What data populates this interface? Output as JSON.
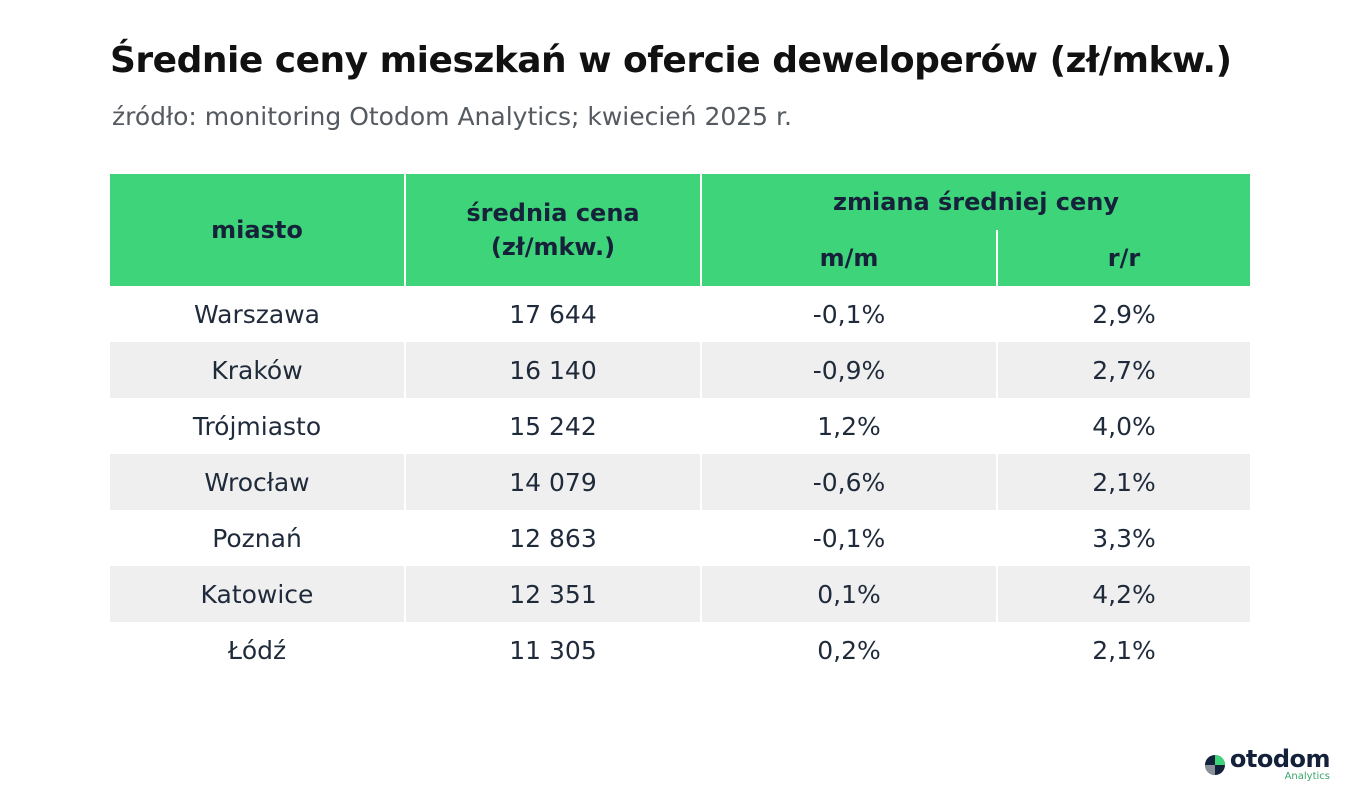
{
  "title": "Średnie ceny mieszkań w ofercie deweloperów (zł/mkw.)",
  "subtitle": "źródło: monitoring Otodom Analytics; kwiecień 2025 r.",
  "logo": {
    "name": "otodom",
    "sub": "Analytics"
  },
  "colors": {
    "header": "#3ed47a",
    "stripe": "#efefef",
    "text": "#1f2a3a"
  },
  "table": {
    "headers": {
      "city": "miasto",
      "price_line1": "średnia cena",
      "price_line2": "(zł/mkw.)",
      "change": "zmiana średniej ceny",
      "mm": "m/m",
      "rr": "r/r"
    },
    "rows": [
      [
        "Warszawa",
        "17 644",
        "-0,1%",
        "2,9%"
      ],
      [
        "Kraków",
        "16 140",
        "-0,9%",
        "2,7%"
      ],
      [
        "Trójmiasto",
        "15 242",
        "1,2%",
        "4,0%"
      ],
      [
        "Wrocław",
        "14 079",
        "-0,6%",
        "2,1%"
      ],
      [
        "Poznań",
        "12 863",
        "-0,1%",
        "3,3%"
      ],
      [
        "Katowice",
        "12 351",
        "0,1%",
        "4,2%"
      ],
      [
        "Łódź",
        "11 305",
        "0,2%",
        "2,1%"
      ]
    ]
  },
  "chart_data": {
    "type": "table",
    "title": "Średnie ceny mieszkań w ofercie deweloperów (zł/mkw.)",
    "subtitle": "źródło: monitoring Otodom Analytics; kwiecień 2025 r.",
    "columns": [
      "miasto",
      "średnia cena (zł/mkw.)",
      "zmiana średniej ceny m/m",
      "zmiana średniej ceny r/r"
    ],
    "rows": [
      [
        "Warszawa",
        17644,
        -0.1,
        2.9
      ],
      [
        "Kraków",
        16140,
        -0.9,
        2.7
      ],
      [
        "Trójmiasto",
        15242,
        1.2,
        4.0
      ],
      [
        "Wrocław",
        14079,
        -0.6,
        2.1
      ],
      [
        "Poznań",
        12863,
        -0.1,
        3.3
      ],
      [
        "Katowice",
        12351,
        0.1,
        4.2
      ],
      [
        "Łódź",
        11305,
        0.2,
        2.1
      ]
    ]
  }
}
